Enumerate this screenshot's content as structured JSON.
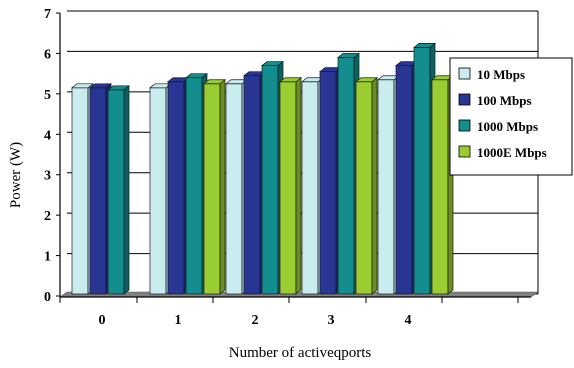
{
  "chart_data": {
    "type": "bar",
    "categories": [
      "0",
      "1",
      "2",
      "3",
      "4"
    ],
    "series": [
      {
        "name": "10 Mbps",
        "color": "#c9ecee",
        "side": "#9ec5c8",
        "values": [
          5.1,
          5.1,
          5.2,
          5.25,
          5.3
        ]
      },
      {
        "name": "100 Mbps",
        "color": "#283593",
        "side": "#1a237e",
        "values": [
          5.1,
          5.25,
          5.4,
          5.5,
          5.65
        ]
      },
      {
        "name": "1000 Mbps",
        "color": "#138d8d",
        "side": "#0b6060",
        "values": [
          5.05,
          5.35,
          5.65,
          5.85,
          6.1
        ]
      },
      {
        "name": "1000E Mbps",
        "color": "#9acd32",
        "side": "#6b8f1f",
        "values": [
          null,
          5.2,
          5.25,
          5.25,
          5.3
        ]
      }
    ],
    "title": "",
    "xlabel": "Number of activeqports",
    "ylabel": "Power (W)",
    "ylim": [
      0,
      7
    ],
    "yticks": [
      "0",
      "1",
      "2",
      "3",
      "4",
      "5",
      "6",
      "7"
    ],
    "grid": true,
    "legend_position": "right"
  }
}
